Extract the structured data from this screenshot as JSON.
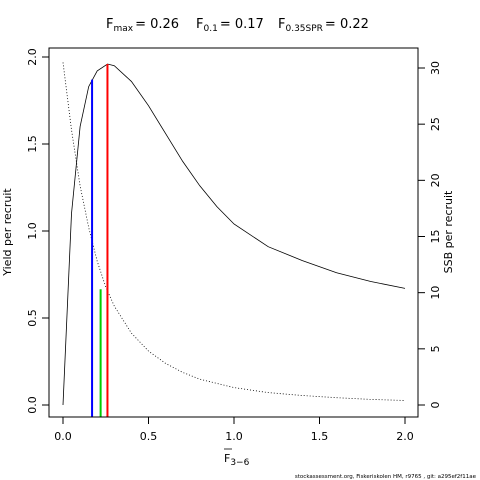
{
  "chart_data": {
    "type": "line",
    "title_parts": [
      {
        "main": "F",
        "sub": "max",
        "value": "= 0.26"
      },
      {
        "main": "F",
        "sub": "0.1",
        "value": "= 0.17"
      },
      {
        "main": "F",
        "sub": "0.35SPR",
        "value": "= 0.22"
      }
    ],
    "xlabel": "F",
    "xlabel_sub": "3−6",
    "ylabel": "Yield per recruit",
    "y2label": "SSB per recruit",
    "xlim": [
      0,
      2
    ],
    "ylim": [
      0,
      2
    ],
    "y2lim": [
      0,
      31
    ],
    "x_ticks": [
      0,
      0.5,
      1,
      1.5,
      2
    ],
    "x_tick_labels": [
      "0.0",
      "0.5",
      "1.0",
      "1.5",
      "2.0"
    ],
    "y_ticks": [
      0,
      0.5,
      1,
      1.5,
      2
    ],
    "y_tick_labels": [
      "0.0",
      "0.5",
      "1.0",
      "1.5",
      "2.0"
    ],
    "y2_ticks": [
      0,
      5,
      10,
      15,
      20,
      25,
      30
    ],
    "y2_tick_labels": [
      "0",
      "5",
      "10",
      "15",
      "20",
      "25",
      "30"
    ],
    "series": [
      {
        "axis": "left",
        "style": "solid",
        "x": [
          0,
          0.05,
          0.1,
          0.15,
          0.2,
          0.26,
          0.3,
          0.4,
          0.5,
          0.6,
          0.7,
          0.8,
          0.9,
          1.0,
          1.2,
          1.4,
          1.6,
          1.8,
          2.0
        ],
        "y": [
          0,
          1.1,
          1.6,
          1.83,
          1.92,
          1.96,
          1.95,
          1.86,
          1.72,
          1.56,
          1.4,
          1.26,
          1.14,
          1.04,
          0.91,
          0.83,
          0.76,
          0.71,
          0.67
        ]
      },
      {
        "axis": "right",
        "style": "dotted",
        "x": [
          0,
          0.05,
          0.1,
          0.15,
          0.2,
          0.25,
          0.3,
          0.4,
          0.5,
          0.6,
          0.7,
          0.8,
          1.0,
          1.2,
          1.4,
          1.6,
          1.8,
          2.0
        ],
        "y": [
          30.5,
          24.5,
          19.5,
          15.8,
          12.8,
          10.5,
          8.8,
          6.4,
          4.8,
          3.7,
          2.9,
          2.3,
          1.55,
          1.1,
          0.85,
          0.65,
          0.5,
          0.4
        ]
      }
    ],
    "reference_lines": [
      {
        "x": 0.17,
        "axis": "left",
        "y": 1.87,
        "color": "#0000ff"
      },
      {
        "x": 0.22,
        "axis": "right",
        "y": 10.3,
        "color": "#00cc00"
      },
      {
        "x": 0.26,
        "axis": "left",
        "y": 1.96,
        "color": "#ff0000"
      }
    ]
  },
  "footer": "stockassessment.org, Fiskeriskolen HM, r9765 , git: a295ef2f11ae"
}
